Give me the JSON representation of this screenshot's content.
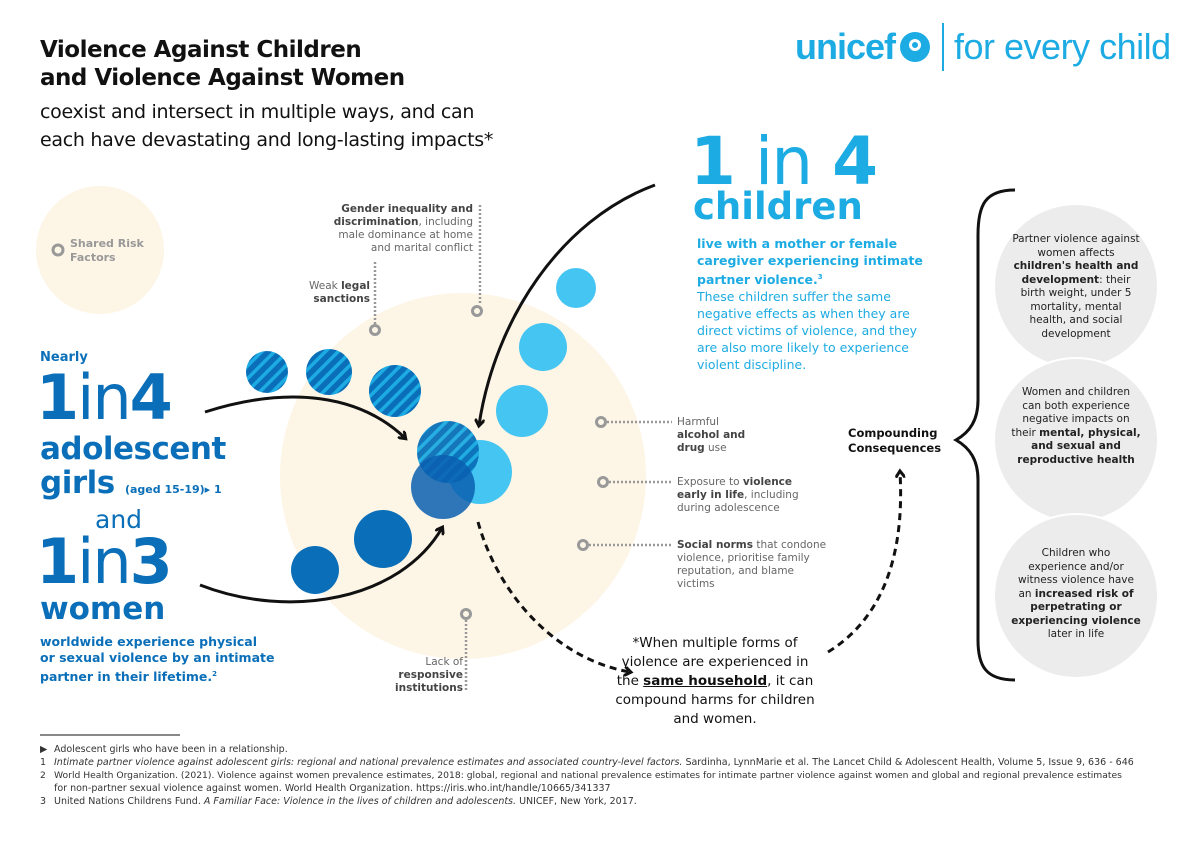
{
  "header": {
    "title_line1": "Violence Against Children",
    "title_line2": "and Violence Against Women",
    "subtitle_line1": "coexist and intersect in multiple ways, and can",
    "subtitle_line2": "each have devastating and long-lasting impacts*"
  },
  "logo": {
    "brand": "unicef",
    "tagline": "for every child",
    "color": "#1cabe2"
  },
  "colors": {
    "dark_blue": "#0a6fb8",
    "cyan": "#1cabe2",
    "light_cyan": "#45c5f1",
    "beige": "#fdf5e6",
    "grey": "#ececec"
  },
  "legend": {
    "label_line1": "Shared Risk",
    "label_line2": "Factors"
  },
  "left_stat": {
    "nearly": "Nearly",
    "girls_num1": "1",
    "girls_in": "in",
    "girls_num2": "4",
    "girls_line1": "adolescent",
    "girls_line2": "girls",
    "aged": "(aged 15-19)▸ 1",
    "and": "and",
    "women_num1": "1",
    "women_in": "in",
    "women_num2": "3",
    "women_label": "women",
    "desc_line1": "worldwide experience physical",
    "desc_line2": "or sexual violence by an intimate",
    "desc_line3": "partner in their lifetime.",
    "desc_sup": "2"
  },
  "children_stat": {
    "num1": "1",
    "in": "in",
    "num2": "4",
    "label": "children",
    "bold_line1": "live with a mother or female",
    "bold_line2": "caregiver experiencing intimate",
    "bold_line3": "partner violence.",
    "sup": "3",
    "text_line1": "These children suffer the same",
    "text_line2": "negative effects as when they are",
    "text_line3": "direct victims of violence, and they",
    "text_line4": "are also more likely to experience",
    "text_line5": "violent discipline."
  },
  "risk_factors": {
    "gender": {
      "bold1": "Gender inequality and",
      "bold2": "discrimination",
      "rest1": ", including",
      "rest2": "male dominance at home",
      "rest3": "and marital conflict"
    },
    "legal": {
      "pre": "Weak ",
      "bold1": "legal",
      "bold2": "sanctions"
    },
    "alcohol": {
      "pre": "Harmful",
      "bold1": "alcohol and",
      "bold2": "drug",
      "post": " use"
    },
    "exposure": {
      "pre": "Exposure to ",
      "bold1": "violence",
      "bold2": "early in life",
      "rest1": ", including",
      "rest2": "during adolescence"
    },
    "norms": {
      "bold": "Social norms",
      "rest1": " that condone",
      "rest2": "violence, prioritise family",
      "rest3": "reputation, and blame",
      "rest4": "victims"
    },
    "institutions": {
      "line1": "Lack of",
      "bold1": "responsive",
      "bold2": "institutions"
    }
  },
  "household_note": {
    "line1": "*When multiple forms of",
    "line2": "violence are experienced in",
    "line3_pre": "the ",
    "line3_bold": "same household",
    "line3_post": ", it can",
    "line4": "compound harms for children",
    "line5": "and women."
  },
  "compounding": {
    "line1": "Compounding",
    "line2": "Consequences"
  },
  "consequences": [
    {
      "pre": "Partner violence against women affects ",
      "bold": "children's health and development",
      "post": ": their birth weight, under 5 mortality, mental health, and social development"
    },
    {
      "pre": "Women and children can both experience negative impacts on their ",
      "bold": "mental, physical, and sexual and reproductive health",
      "post": ""
    },
    {
      "pre": "Children who experience and/or witness violence have an ",
      "bold": "increased risk of perpetrating or experiencing violence",
      "post": " later in life"
    }
  ],
  "footnotes": [
    {
      "mark": "▶",
      "text": "Adolescent girls who have been in a relationship.",
      "italic": ""
    },
    {
      "mark": "1",
      "italic": "Intimate partner violence against adolescent girls: regional and national prevalence estimates and associated country-level factors.",
      "text": " Sardinha, LynnMarie et al. The Lancet Child & Adolescent Health, Volume 5, Issue 9, 636 - 646"
    },
    {
      "mark": "2",
      "italic": "",
      "text": "World Health Organization. (2021). Violence against women prevalence estimates, 2018: global, regional and national prevalence estimates for intimate partner violence against women and global and regional prevalence estimates"
    },
    {
      "mark": "",
      "italic": "",
      "text": "for non-partner sexual violence against women. World Health Organization. https://iris.who.int/handle/10665/341337"
    },
    {
      "mark": "3",
      "text_pre": "United Nations Childrens Fund. ",
      "italic": "A Familiar Face: Violence in the lives of children and adolescents.",
      "text": " UNICEF, New York, 2017."
    }
  ]
}
